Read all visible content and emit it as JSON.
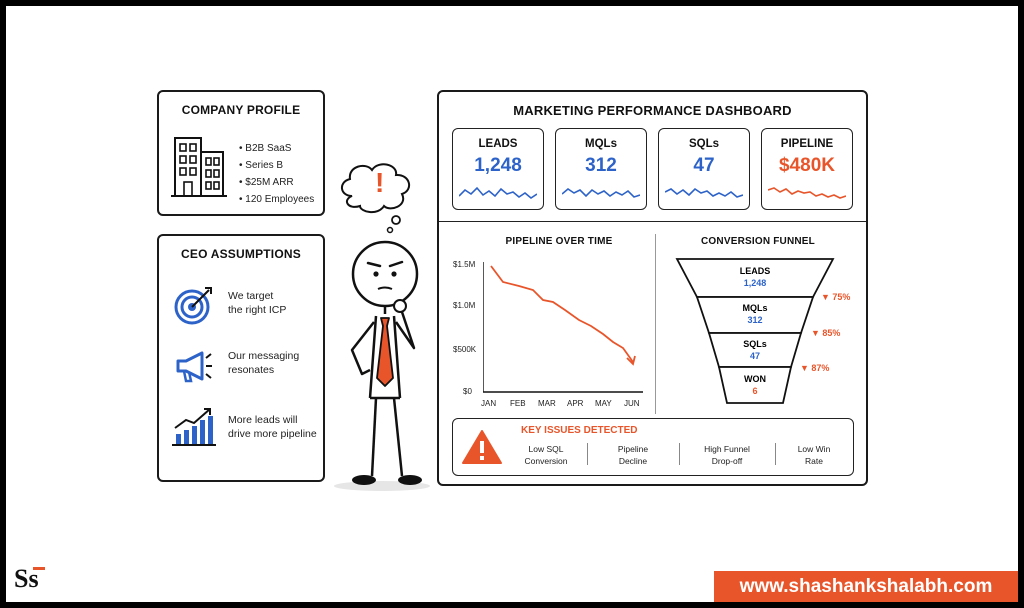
{
  "company_profile": {
    "title": "COMPANY PROFILE",
    "items": [
      "B2B SaaS",
      "Series B",
      "$25M ARR",
      "120 Employees"
    ]
  },
  "ceo_assumptions": {
    "title": "CEO ASSUMPTIONS",
    "items": [
      {
        "line1": "We target",
        "line2": "the right ICP",
        "icon": "target-icon"
      },
      {
        "line1": "Our messaging",
        "line2": "resonates",
        "icon": "megaphone-icon"
      },
      {
        "line1": "More leads will",
        "line2": "drive more pipeline",
        "icon": "growth-chart-icon"
      }
    ]
  },
  "character": {
    "thought": "!"
  },
  "dashboard": {
    "title": "MARKETING PERFORMANCE DASHBOARD",
    "kpis": [
      {
        "label": "LEADS",
        "value": "1,248",
        "color": "#2d63c9"
      },
      {
        "label": "MQLs",
        "value": "312",
        "color": "#2d63c9"
      },
      {
        "label": "SQLs",
        "value": "47",
        "color": "#2d63c9"
      },
      {
        "label": "PIPELINE",
        "value": "$480K",
        "color": "#e8552a"
      }
    ],
    "pipeline_chart": {
      "title": "PIPELINE OVER TIME",
      "y_ticks": [
        "$1.5M",
        "$1.0M",
        "$500K",
        "$0"
      ],
      "x_ticks": [
        "JAN",
        "FEB",
        "MAR",
        "APR",
        "MAY",
        "JUN"
      ]
    },
    "funnel": {
      "title": "CONVERSION FUNNEL",
      "stages": [
        {
          "label": "LEADS",
          "value": "1,248"
        },
        {
          "label": "MQLs",
          "value": "312"
        },
        {
          "label": "SQLs",
          "value": "47"
        },
        {
          "label": "WON",
          "value": "6"
        }
      ],
      "drops": [
        "▼ 75%",
        "▼ 85%",
        "▼ 87%"
      ]
    },
    "key_issues": {
      "title": "KEY ISSUES DETECTED",
      "items": [
        {
          "line1": "Low SQL",
          "line2": "Conversion"
        },
        {
          "line1": "Pipeline",
          "line2": "Decline"
        },
        {
          "line1": "High Funnel",
          "line2": "Drop-off"
        },
        {
          "line1": "Low Win",
          "line2": "Rate"
        }
      ]
    }
  },
  "footer": {
    "logo": "Ss",
    "website": "www.shashankshalabh.com"
  },
  "colors": {
    "accent_blue": "#2d63c9",
    "accent_orange": "#e8552a",
    "banner": "#e8552a"
  }
}
